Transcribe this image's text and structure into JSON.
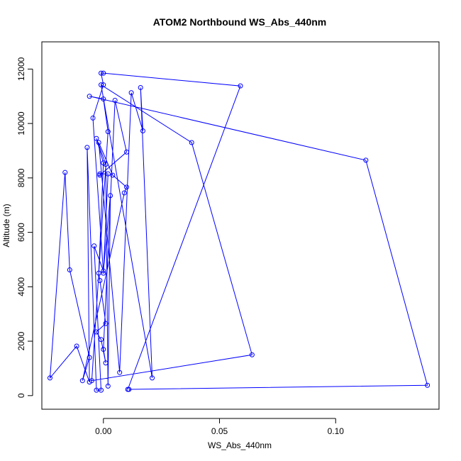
{
  "chart_data": {
    "type": "line",
    "title": "ATOM2 Northbound WS_Abs_440nm",
    "xlabel": "WS_Abs_440nm",
    "ylabel": "Altitude (m)",
    "xlim": [
      -0.0265,
      0.1445
    ],
    "ylim": [
      -500,
      13000
    ],
    "x_ticks": [
      0.0,
      0.05,
      0.1
    ],
    "x_tick_labels": [
      "0.00",
      "0.05",
      "0.10"
    ],
    "y_ticks": [
      0,
      2000,
      4000,
      6000,
      8000,
      10000,
      12000
    ],
    "y_tick_labels": [
      "0",
      "2000",
      "4000",
      "6000",
      "8000",
      "10000",
      "12000"
    ],
    "grid": false,
    "marker": "open-circle",
    "colors": {
      "series": "#0000ff",
      "axes": "#000000",
      "background": "#ffffff"
    },
    "series": [
      {
        "points": [
          {
            "x": 0.0105,
            "y": 230
          },
          {
            "x": 0.059,
            "y": 11380
          },
          {
            "x": 0.0,
            "y": 11850
          },
          {
            "x": -0.001,
            "y": 11850
          },
          {
            "x": 0.0,
            "y": 11420
          },
          {
            "x": -0.0045,
            "y": 10200
          },
          {
            "x": 0.0,
            "y": 4500
          },
          {
            "x": 0.002,
            "y": 8150
          },
          {
            "x": -0.0015,
            "y": 8150
          },
          {
            "x": -0.0015,
            "y": 8100
          },
          {
            "x": 0.01,
            "y": 8950
          },
          {
            "x": 0.005,
            "y": 10850
          },
          {
            "x": 0.0,
            "y": 1700
          },
          {
            "x": 0.001,
            "y": 1200
          },
          {
            "x": -0.001,
            "y": 2060
          },
          {
            "x": -0.003,
            "y": 2340
          },
          {
            "x": 0.001,
            "y": 2650
          },
          {
            "x": -0.0015,
            "y": 4230
          },
          {
            "x": -0.002,
            "y": 4500
          },
          {
            "x": 0.0,
            "y": 8550
          },
          {
            "x": -0.003,
            "y": 9450
          },
          {
            "x": 0.001,
            "y": 8500
          },
          {
            "x": 0.002,
            "y": 350
          },
          {
            "x": 0.003,
            "y": 7350
          },
          {
            "x": 0.0,
            "y": 4580
          },
          {
            "x": -0.004,
            "y": 5500
          },
          {
            "x": -0.001,
            "y": 200
          },
          {
            "x": -0.003,
            "y": 200
          },
          {
            "x": -0.007,
            "y": 9120
          },
          {
            "x": -0.006,
            "y": 500
          },
          {
            "x": -0.0115,
            "y": 1820
          },
          {
            "x": -0.023,
            "y": 650
          },
          {
            "x": -0.0165,
            "y": 8200
          },
          {
            "x": -0.0145,
            "y": 4620
          },
          {
            "x": -0.006,
            "y": 1400
          },
          {
            "x": -0.009,
            "y": 550
          },
          {
            "x": 0.009,
            "y": 7450
          },
          {
            "x": 0.01,
            "y": 7660
          },
          {
            "x": 0.004,
            "y": 8100
          },
          {
            "x": -0.002,
            "y": 9300
          },
          {
            "x": 0.007,
            "y": 850
          },
          {
            "x": 0.012,
            "y": 11130
          },
          {
            "x": 0.017,
            "y": 9730
          },
          {
            "x": 0.016,
            "y": 11320
          },
          {
            "x": 0.021,
            "y": 650
          },
          {
            "x": -0.001,
            "y": 11420
          },
          {
            "x": 0.038,
            "y": 9300
          },
          {
            "x": 0.064,
            "y": 1500
          },
          {
            "x": -0.005,
            "y": 550
          },
          {
            "x": 0.002,
            "y": 9700
          },
          {
            "x": 0.0,
            "y": 10900
          },
          {
            "x": -0.006,
            "y": 11000
          },
          {
            "x": 0.113,
            "y": 8650
          },
          {
            "x": 0.1395,
            "y": 380
          },
          {
            "x": 0.011,
            "y": 230
          }
        ]
      }
    ]
  }
}
